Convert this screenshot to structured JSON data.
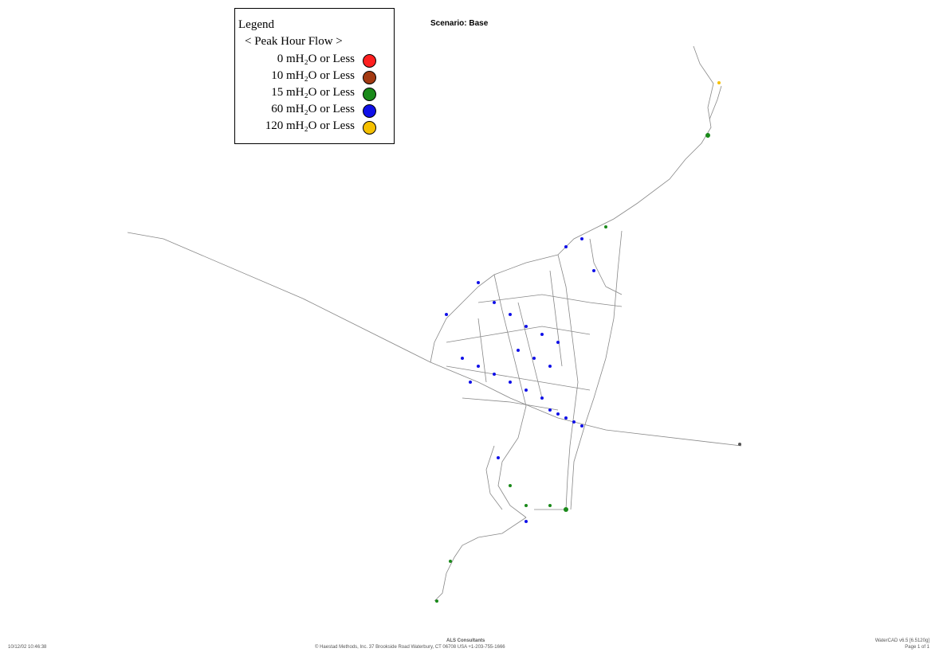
{
  "legend": {
    "title": "Legend",
    "subtitle": "< Peak Hour Flow >",
    "items": [
      {
        "label": "0 mH₂O or Less",
        "color": "#ff2020"
      },
      {
        "label": "10 mH₂O or Less",
        "color": "#a33a12"
      },
      {
        "label": "15 mH₂O or Less",
        "color": "#1a8a1a"
      },
      {
        "label": "60 mH₂O or Less",
        "color": "#1010e8"
      },
      {
        "label": "120 mH₂O or Less",
        "color": "#f5c000"
      }
    ]
  },
  "header": {
    "scenario": "Scenario: Base"
  },
  "footer": {
    "timestamp": "10/12/02 10:46:38",
    "company": "ALS Consultants",
    "address": "© Haestad Methods, Inc.   37 Brookside Road   Waterbury, CT 06708 USA   +1-203-755-1666",
    "software": "WaterCAD v6.5 [6.5120g]",
    "page": "Page 1 of 1"
  }
}
